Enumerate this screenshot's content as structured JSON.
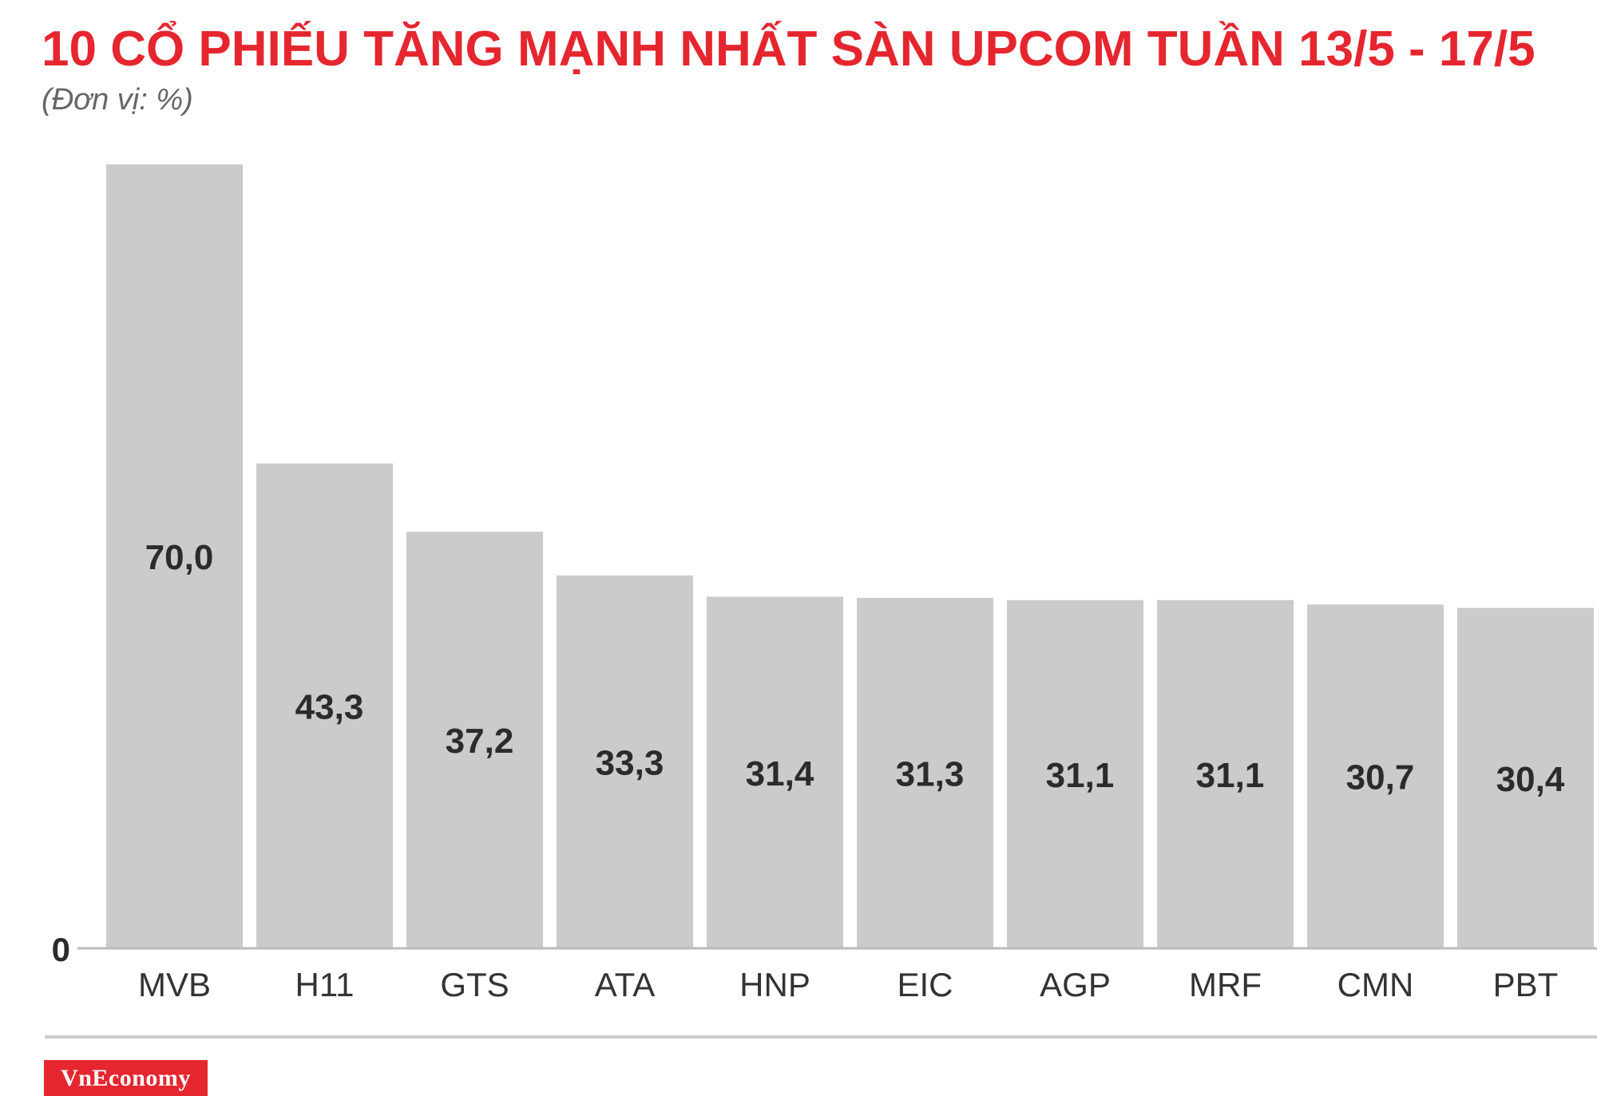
{
  "header": {
    "title": "10 CỔ PHIẾU TĂNG MẠNH NHẤT SÀN UPCOM TUẦN 13/5 - 17/5",
    "subtitle": "(Đơn vị: %)"
  },
  "footer": {
    "brand": "VnEconomy"
  },
  "colors": {
    "title": "#e5262f",
    "bar": "#cccbcc",
    "brand_bg": "#e5262f"
  },
  "chart_data": {
    "type": "bar",
    "title": "10 CỔ PHIẾU TĂNG MẠNH NHẤT SÀN UPCOM TUẦN 13/5 - 17/5",
    "subtitle": "(Đơn vị: %)",
    "categories": [
      "MVB",
      "H11",
      "GTS",
      "ATA",
      "HNP",
      "EIC",
      "AGP",
      "MRF",
      "CMN",
      "PBT"
    ],
    "values": [
      70.0,
      43.3,
      37.2,
      33.3,
      31.4,
      31.3,
      31.1,
      31.1,
      30.7,
      30.4
    ],
    "value_labels": [
      "70,0",
      "43,3",
      "37,2",
      "33,3",
      "31,4",
      "31,3",
      "31,1",
      "31,1",
      "30,7",
      "30,4"
    ],
    "y_tick_labels": [
      "0"
    ],
    "ylim": [
      0,
      70
    ],
    "grid": false,
    "legend": "none"
  }
}
